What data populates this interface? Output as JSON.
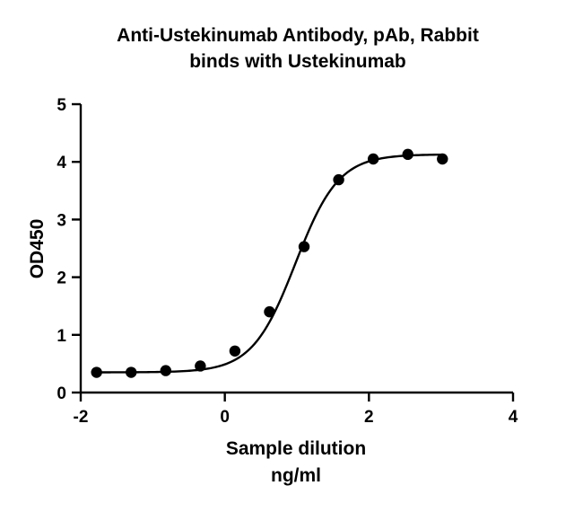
{
  "chart_data": {
    "type": "scatter",
    "title_line1": "Anti-Ustekinumab Antibody, pAb, Rabbit",
    "title_line2": "binds with Ustekinumab",
    "xlabel_line1": "Sample dilution",
    "xlabel_line2": "ng/ml",
    "ylabel": "OD450",
    "xlim": [
      -2,
      4
    ],
    "ylim": [
      0,
      5
    ],
    "xticks": [
      -2,
      0,
      2,
      4
    ],
    "yticks": [
      0,
      1,
      2,
      3,
      4,
      5
    ],
    "grid": false,
    "series": [
      {
        "x": [
          -1.78,
          -1.3,
          -0.82,
          -0.34,
          0.14,
          0.62,
          1.1,
          1.58,
          2.06,
          2.54,
          3.02
        ],
        "y": [
          0.35,
          0.35,
          0.38,
          0.46,
          0.72,
          1.4,
          2.53,
          3.69,
          4.05,
          4.13,
          4.05
        ],
        "fit": "sigmoidal",
        "fit_range": [
          -1.78,
          3.02
        ]
      }
    ]
  }
}
